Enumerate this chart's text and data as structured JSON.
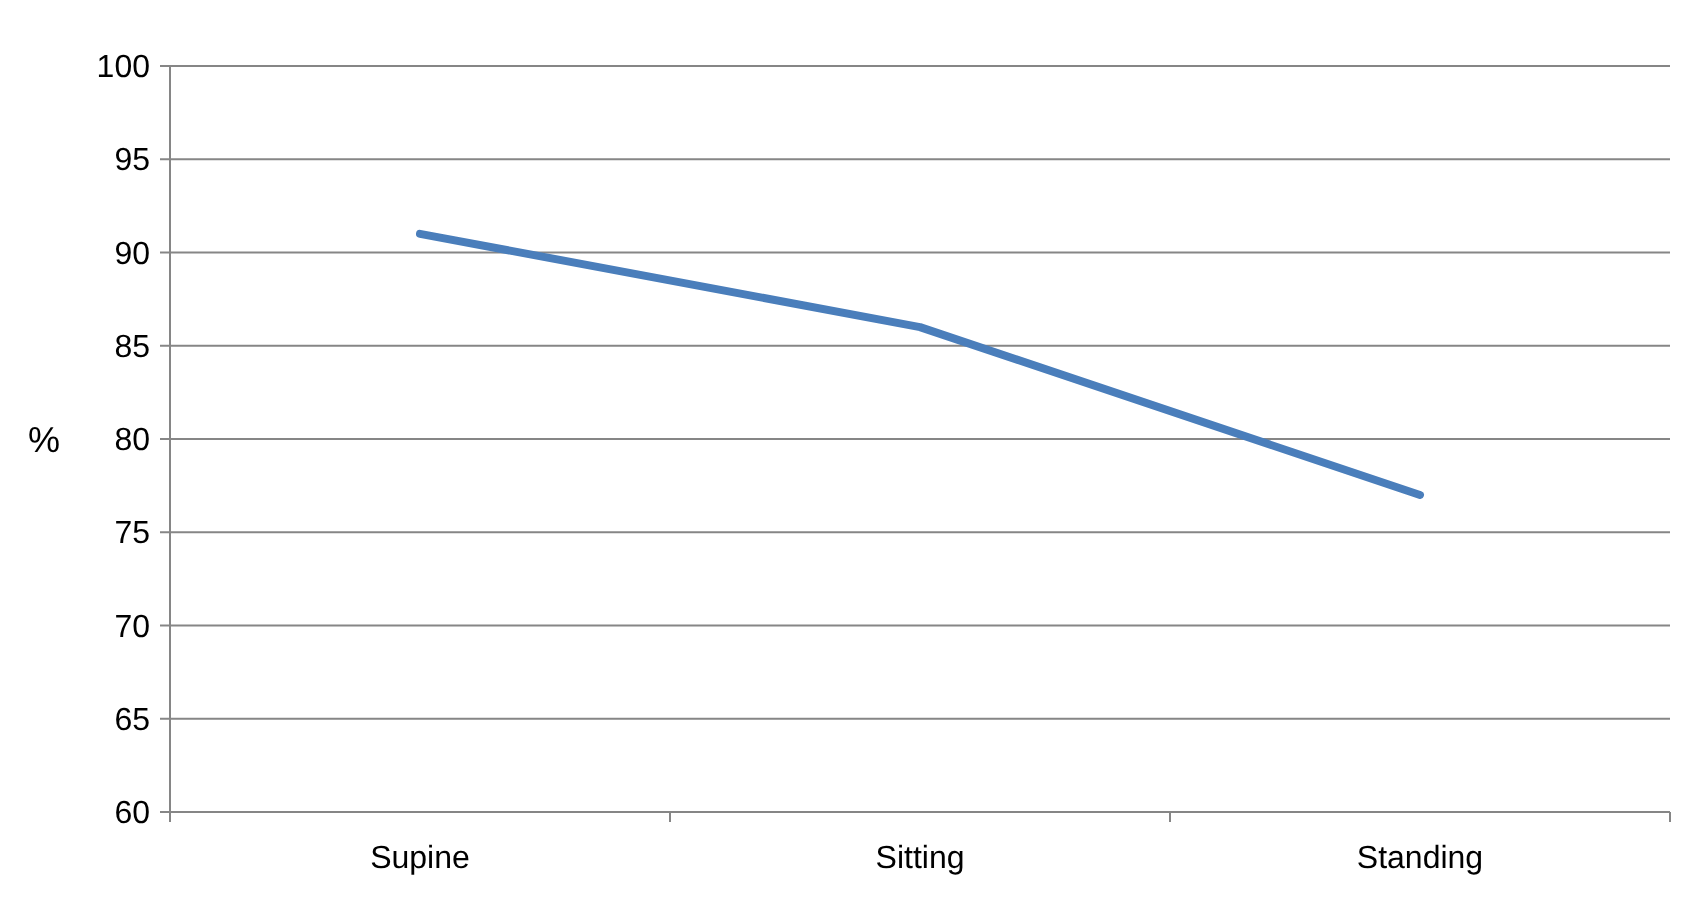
{
  "chart_data": {
    "type": "line",
    "ylabel": "%",
    "categories": [
      "Supine",
      "Sitting",
      "Standing"
    ],
    "series": [
      {
        "color": "#4a7ebb",
        "values": [
          91,
          86,
          77
        ]
      }
    ],
    "ylim": [
      60,
      100
    ],
    "yticks": [
      60,
      65,
      70,
      75,
      80,
      85,
      90,
      95,
      100
    ],
    "grid": "y",
    "marker": "none",
    "line_style": "solid"
  }
}
